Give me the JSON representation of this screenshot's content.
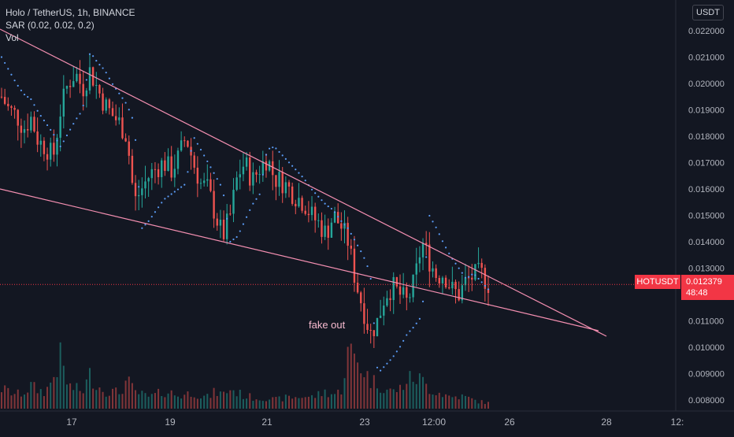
{
  "legend": {
    "title": "Holo / TetherUS, 1h, BINANCE",
    "indicator1": "SAR (0.02, 0.02, 0.2)",
    "indicator2": "Vol"
  },
  "currency_button": "USDT",
  "last_price": {
    "symbol": "HOTUSDT",
    "value": "0.012379",
    "countdown": "48:48"
  },
  "annotation": "fake out",
  "colors": {
    "background": "#131722",
    "up": "#26a69a",
    "down": "#ef5350",
    "sar": "#5b9cf6",
    "trendline": "#f48fb1",
    "price_line": "#f23645"
  },
  "chart_data": {
    "type": "candlestick",
    "title": "Holo / TetherUS, 1h, BINANCE",
    "y_axis": {
      "ticks": [
        "0.022000",
        "0.021000",
        "0.020000",
        "0.019000",
        "0.018000",
        "0.017000",
        "0.016000",
        "0.015000",
        "0.014000",
        "0.013000",
        "0.012000",
        "0.011000",
        "0.010000",
        "0.009000",
        "0.008000"
      ],
      "range": [
        0.0078,
        0.0232
      ],
      "unit": "USDT"
    },
    "x_axis": {
      "ticks": [
        "17",
        "19",
        "21",
        "23",
        "12:00",
        "26",
        "28",
        "12:"
      ]
    },
    "last_price": 0.012379,
    "price_path": [
      0.0195,
      0.019,
      0.0188,
      0.0183,
      0.0187,
      0.0178,
      0.0176,
      0.0172,
      0.019,
      0.02,
      0.0204,
      0.0198,
      0.0205,
      0.0198,
      0.0192,
      0.0188,
      0.0185,
      0.018,
      0.0155,
      0.016,
      0.0165,
      0.0168,
      0.017,
      0.0167,
      0.0172,
      0.018,
      0.017,
      0.0162,
      0.016,
      0.015,
      0.0142,
      0.015,
      0.0165,
      0.017,
      0.0163,
      0.0168,
      0.0172,
      0.0164,
      0.0163,
      0.016,
      0.0157,
      0.0155,
      0.015,
      0.0147,
      0.0143,
      0.015,
      0.0146,
      0.014,
      0.0125,
      0.0115,
      0.0105,
      0.011,
      0.012,
      0.0123,
      0.012,
      0.0117,
      0.0125,
      0.014,
      0.0133,
      0.0127,
      0.0128,
      0.0122,
      0.012,
      0.0125,
      0.0127,
      0.0128,
      0.0124
    ],
    "volume_path": [
      0.35,
      0.3,
      0.25,
      0.28,
      0.4,
      0.32,
      0.3,
      0.55,
      0.9,
      0.4,
      0.35,
      0.3,
      0.6,
      0.4,
      0.32,
      0.3,
      0.28,
      0.5,
      0.3,
      0.25,
      0.2,
      0.25,
      0.3,
      0.28,
      0.22,
      0.25,
      0.3,
      0.22,
      0.2,
      0.3,
      0.25,
      0.35,
      0.28,
      0.22,
      0.2,
      0.18,
      0.2,
      0.15,
      0.18,
      0.2,
      0.2,
      0.22,
      0.2,
      0.25,
      0.3,
      0.25,
      0.3,
      1.0,
      0.9,
      0.7,
      0.5,
      0.45,
      0.35,
      0.3,
      0.35,
      0.5,
      0.55,
      0.5,
      0.35,
      0.3,
      0.25,
      0.2,
      0.22,
      0.2,
      0.15,
      0.12,
      0.1
    ],
    "sar_path": [
      0.021,
      0.0205,
      0.02,
      0.0196,
      0.0194,
      0.0189,
      0.0185,
      0.0181,
      0.0176,
      0.0181,
      0.0186,
      0.019,
      0.0212,
      0.0208,
      0.0205,
      0.02,
      0.0196,
      0.0192,
      0.0185,
      0.0145,
      0.0148,
      0.0152,
      0.0156,
      0.0158,
      0.016,
      0.0162,
      0.018,
      0.0175,
      0.017,
      0.0165,
      0.016,
      0.014,
      0.0142,
      0.0148,
      0.0154,
      0.0158,
      0.0175,
      0.0176,
      0.0173,
      0.017,
      0.0167,
      0.0164,
      0.016,
      0.0157,
      0.0154,
      0.0152,
      0.0148,
      0.0145,
      0.014,
      0.0135,
      0.0128,
      0.009,
      0.0093,
      0.0096,
      0.01,
      0.0105,
      0.0108,
      0.0112,
      0.015,
      0.0145,
      0.0139,
      0.0134,
      0.013,
      0.0126,
      0.0128,
      0.0125,
      0.0122
    ]
  }
}
